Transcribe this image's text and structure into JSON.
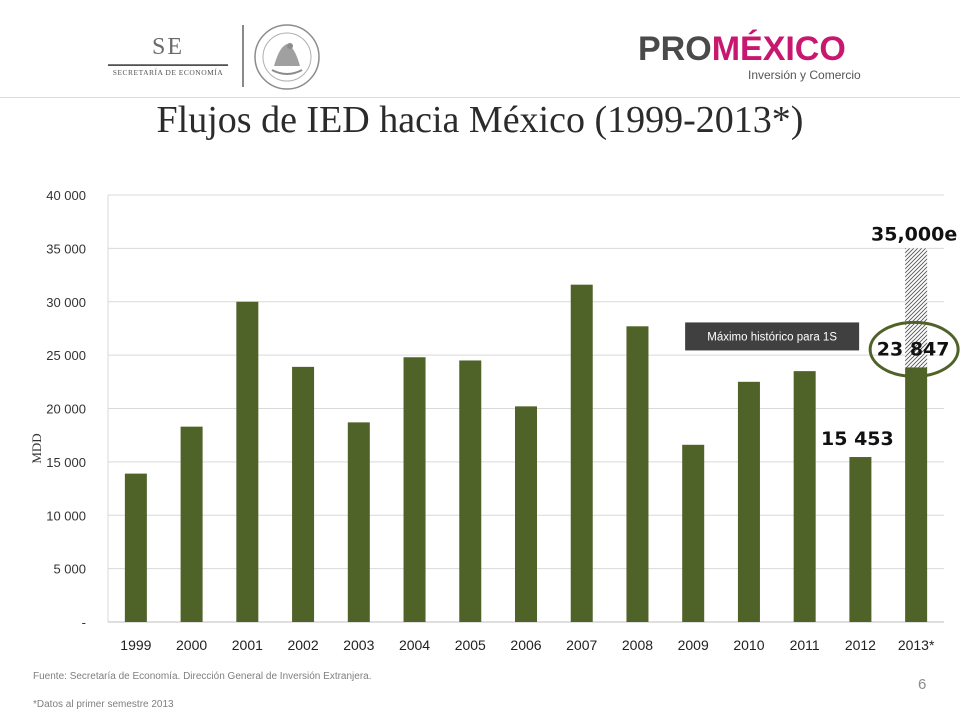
{
  "header": {
    "se_logo_text": "SE",
    "se_logo_subtitle": "SECRETARÍA DE ECONOMÍA",
    "promexico_pro": "PRO",
    "promexico_mexico": "MÉXICO",
    "promexico_subtitle": "Inversión y Comercio"
  },
  "title": "Flujos de IED hacia México (1999-2013*)",
  "chart_data": {
    "type": "bar",
    "categories": [
      "1999",
      "2000",
      "2001",
      "2002",
      "2003",
      "2004",
      "2005",
      "2006",
      "2007",
      "2008",
      "2009",
      "2010",
      "2011",
      "2012",
      "2013*"
    ],
    "values": [
      13900,
      18300,
      30000,
      23900,
      18700,
      24800,
      24500,
      20200,
      31600,
      27700,
      16600,
      22500,
      23500,
      15453,
      23847
    ],
    "ylabel": "MDD",
    "ylim": [
      0,
      40000
    ],
    "yticks": [
      0,
      5000,
      10000,
      15000,
      20000,
      25000,
      30000,
      35000,
      40000
    ],
    "ytick_labels": [
      "-",
      "5 000",
      "10 000",
      "15 000",
      "20 000",
      "25 000",
      "30 000",
      "35 000",
      "40 000"
    ],
    "grid": true,
    "bar_color": "#4f6228",
    "estimate_extension": {
      "category": "2013*",
      "from": 23847,
      "to": 35000,
      "label": "35,000e"
    },
    "data_labels": [
      {
        "category": "2012",
        "text": "15 453"
      },
      {
        "category": "2013*",
        "text": "23 847"
      }
    ],
    "callout": {
      "text": "Máximo histórico para 1S",
      "category": "2013*"
    },
    "highlight_color": "#4f6228"
  },
  "footer": {
    "source": "Fuente: Secretaría de Economía. Dirección General de Inversión Extranjera.",
    "note": "*Datos al primer semestre 2013",
    "page_number": "6"
  }
}
